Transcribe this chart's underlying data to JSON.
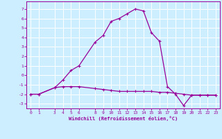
{
  "xlabel": "Windchill (Refroidissement éolien,°C)",
  "x_hours": [
    0,
    1,
    3,
    4,
    5,
    6,
    8,
    9,
    10,
    11,
    12,
    13,
    14,
    15,
    16,
    17,
    18,
    19,
    20,
    21,
    22,
    23
  ],
  "temp_line": [
    -2,
    -2,
    -1.3,
    -0.5,
    0.5,
    1.0,
    3.5,
    4.2,
    5.7,
    6.0,
    6.5,
    7.0,
    6.8,
    4.5,
    3.6,
    -1.2,
    -2.0,
    -3.2,
    -2.1,
    -2.1,
    -2.1,
    -2.1
  ],
  "windchill_line": [
    -2,
    -2,
    -1.3,
    -1.2,
    -1.2,
    -1.2,
    -1.4,
    -1.5,
    -1.6,
    -1.7,
    -1.7,
    -1.7,
    -1.7,
    -1.7,
    -1.8,
    -1.8,
    -1.9,
    -2.0,
    -2.1,
    -2.1,
    -2.1,
    -2.1
  ],
  "ylim": [
    -3.5,
    7.8
  ],
  "xlim": [
    -0.5,
    23.5
  ],
  "line_color": "#990099",
  "bg_color": "#cceeff",
  "grid_color": "#ffffff",
  "yticks": [
    -3,
    -2,
    -1,
    0,
    1,
    2,
    3,
    4,
    5,
    6,
    7
  ],
  "xticks": [
    0,
    1,
    3,
    4,
    5,
    6,
    8,
    9,
    10,
    11,
    12,
    13,
    14,
    15,
    16,
    17,
    18,
    19,
    20,
    21,
    22,
    23
  ],
  "tick_fontsize": 4.5,
  "xlabel_fontsize": 5.0
}
